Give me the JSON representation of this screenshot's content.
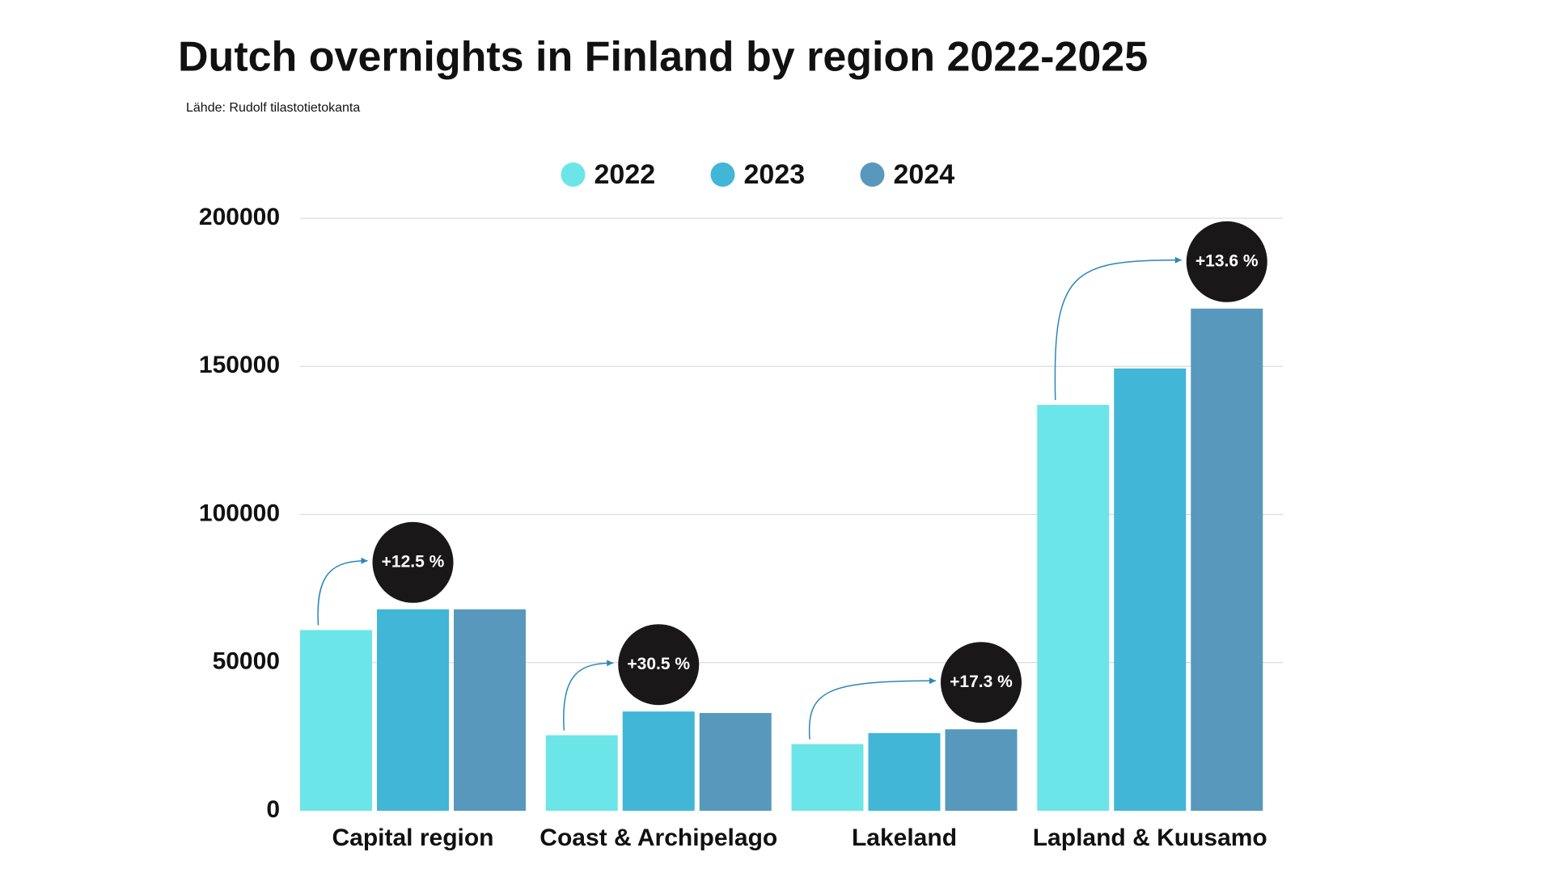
{
  "chart_data": {
    "type": "bar",
    "title": "Dutch overnights in Finland by region 2022-2025",
    "subtitle": "Lähde: Rudolf tilastotietokanta",
    "categories": [
      "Capital region",
      "Coast & Archipelago",
      "Lakeland",
      "Lapland & Kuusamo"
    ],
    "series": [
      {
        "name": "2022",
        "color": "#6ce5e8",
        "values": [
          61000,
          25500,
          22500,
          137000
        ]
      },
      {
        "name": "2023",
        "color": "#41b6d6",
        "values": [
          68000,
          33500,
          26200,
          149300
        ]
      },
      {
        "name": "2024",
        "color": "#5898bd",
        "values": [
          68000,
          33000,
          27500,
          169500
        ]
      }
    ],
    "annotations": [
      "+12.5 %",
      "+30.5 %",
      "+17.3 %",
      "+13.6 %"
    ],
    "ylim": [
      0,
      200000
    ],
    "yticks": [
      0,
      50000,
      100000,
      150000,
      200000
    ],
    "grid": true
  }
}
